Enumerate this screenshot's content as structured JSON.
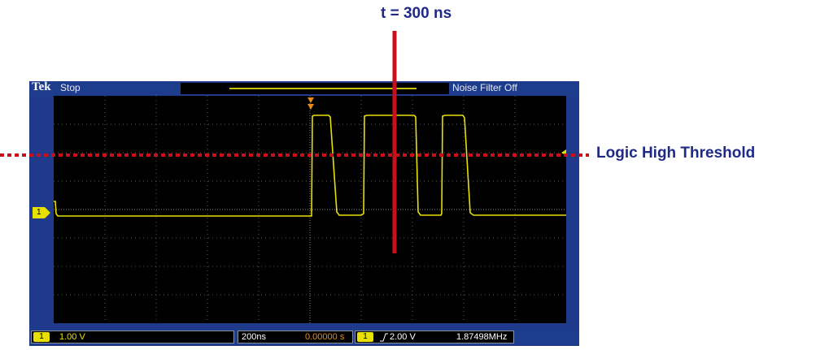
{
  "annotations": {
    "time_marker": "t = 300 ns",
    "threshold": "Logic High Threshold"
  },
  "scope": {
    "brand": "Tek",
    "run_state": "Stop",
    "noise_filter": "Noise Filter Off",
    "channel_marker": "1",
    "bottom": {
      "ch1_badge": "1",
      "ch1_scale": "1.00 V",
      "timebase": "200ns",
      "position": "0.00000 s",
      "trig_badge": "1",
      "trig_level": "2.00 V",
      "frequency": "1.87498MHz"
    },
    "colors": {
      "trace": "#e8e000",
      "grid_bg": "#000000",
      "frame": "#1f3a8a",
      "trigger_marker": "#e58a1a"
    }
  }
}
